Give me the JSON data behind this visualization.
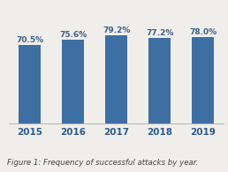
{
  "categories": [
    "2015",
    "2016",
    "2017",
    "2018",
    "2019"
  ],
  "values": [
    70.5,
    75.6,
    79.2,
    77.2,
    78.0
  ],
  "labels": [
    "70.5%",
    "75.6%",
    "79.2%",
    "77.2%",
    "78.0%"
  ],
  "bar_color": "#3d6fa3",
  "background_color": "#f0eeea",
  "ylim": [
    0,
    100
  ],
  "caption": "Figure 1: Frequency of successful attacks by year.",
  "caption_fontsize": 6.2,
  "label_fontsize": 6.5,
  "tick_fontsize": 7.5,
  "tick_color": "#2d5a8e",
  "label_color": "#3d5f8a",
  "bar_width": 0.5
}
